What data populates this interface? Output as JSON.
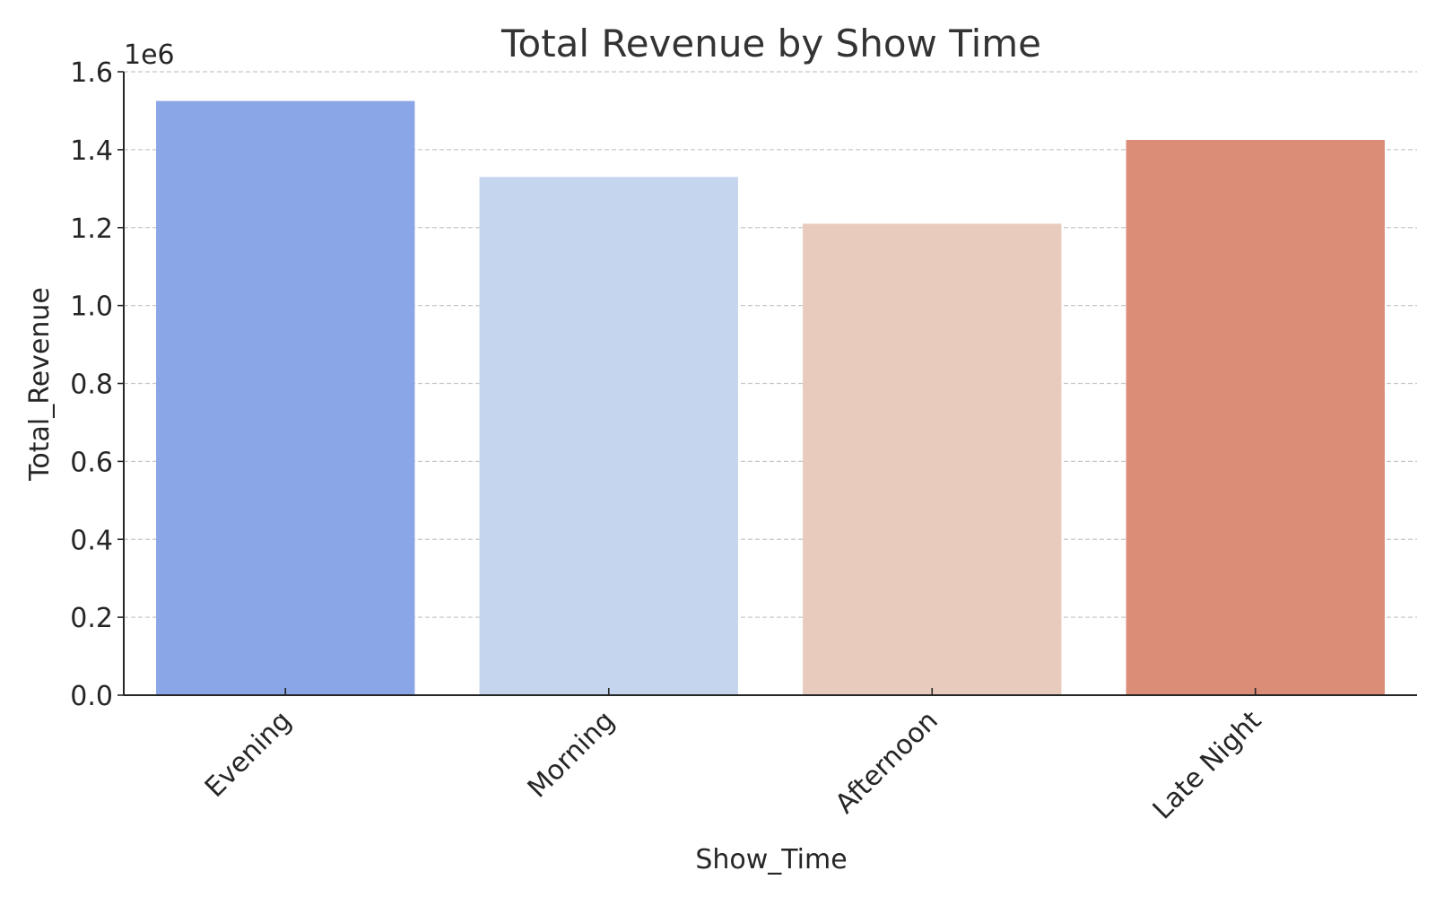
{
  "chart_data": {
    "type": "bar",
    "title": "Total Revenue by Show Time",
    "xlabel": "Show_Time",
    "ylabel": "Total_Revenue",
    "y_offset_label": "1e6",
    "categories": [
      "Evening",
      "Morning",
      "Afternoon",
      "Late Night"
    ],
    "values": [
      1525000,
      1330000,
      1210000,
      1425000
    ],
    "colors": [
      "#8aa6e7",
      "#c6d5ee",
      "#e8cbbd",
      "#db8d77"
    ],
    "ylim": [
      0,
      1600000
    ],
    "y_ticks": [
      0,
      200000,
      400000,
      600000,
      800000,
      1000000,
      1200000,
      1400000,
      1600000
    ],
    "y_tick_labels": [
      "0.0",
      "0.2",
      "0.4",
      "0.6",
      "0.8",
      "1.0",
      "1.2",
      "1.4",
      "1.6"
    ],
    "grid": "horizontal-dashed",
    "legend": "none"
  }
}
